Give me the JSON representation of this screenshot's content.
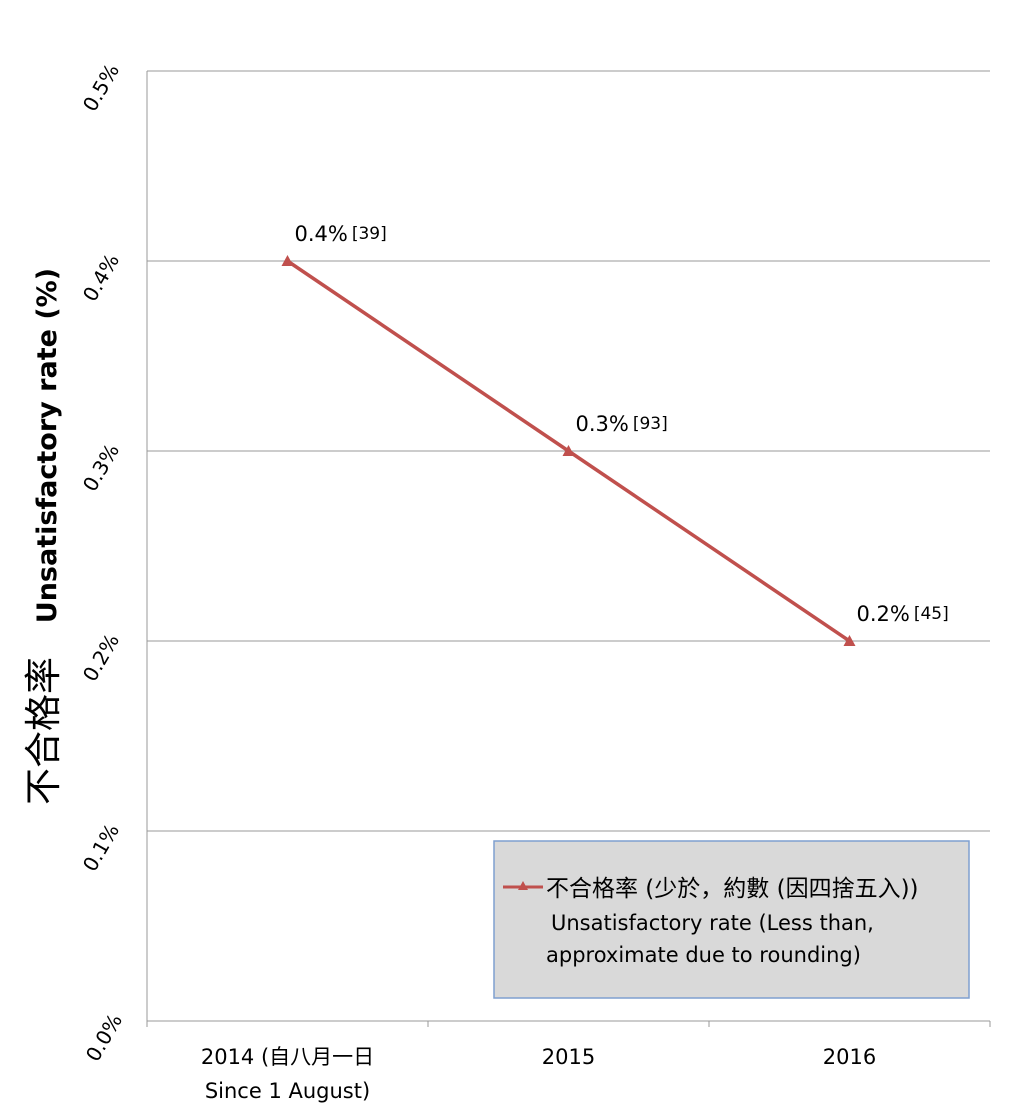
{
  "chart_data": {
    "type": "line",
    "title": "",
    "xlabel": "",
    "ylabel_zh": "不合格率",
    "ylabel_en": "Unsatisfactory rate (%)",
    "ylim": [
      0,
      0.5
    ],
    "yticks": [
      0,
      0.1,
      0.2,
      0.3,
      0.4,
      0.5
    ],
    "ytick_labels": [
      "0.0%",
      "0.1%",
      "0.2%",
      "0.3%",
      "0.4%",
      "0.5%"
    ],
    "grid": true,
    "categories": [
      "2014 (自八月一日",
      "2015",
      "2016"
    ],
    "category_sublabels": [
      "Since 1 August)",
      "",
      ""
    ],
    "series": [
      {
        "name_zh": "不合格率 (少於，約數 (因四捨五入))",
        "name_en_line1": "Unsatisfactory rate (Less than,",
        "name_en_line2": "approximate due to rounding)",
        "color": "#c0504d",
        "marker": "triangle",
        "values": [
          0.4,
          0.3,
          0.2
        ],
        "data_labels": [
          "0.4%",
          "0.3%",
          "0.2%"
        ],
        "data_label_refs": [
          "[39]",
          "[93]",
          "[45]"
        ]
      }
    ],
    "legend_placement": "bottom-right"
  }
}
